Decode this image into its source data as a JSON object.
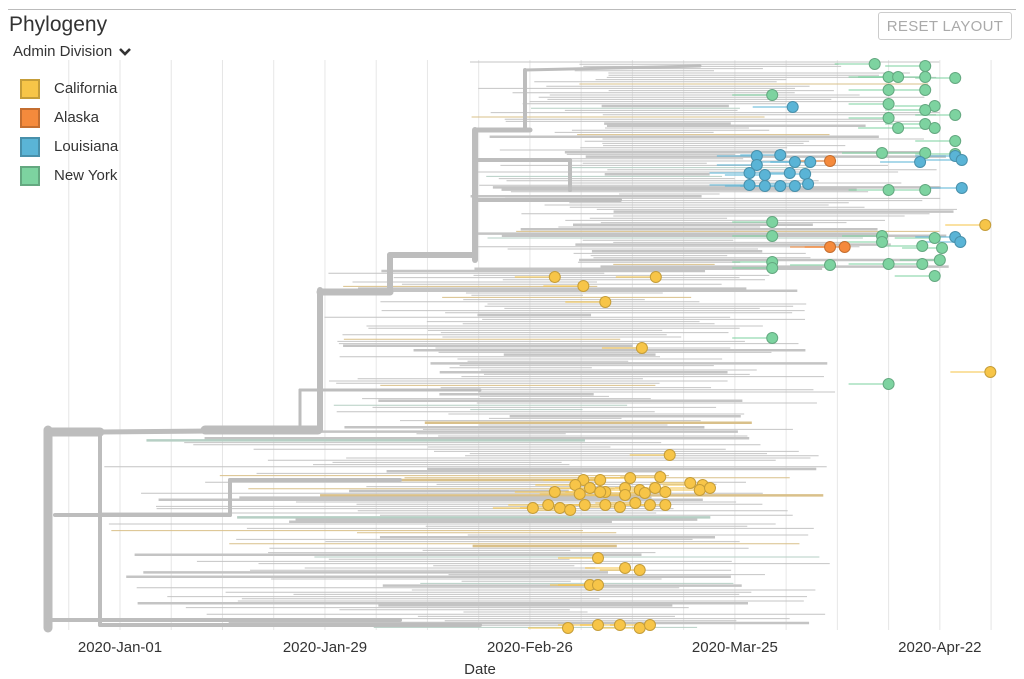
{
  "header": {
    "title": "Phylogeny",
    "reset_label": "RESET LAYOUT"
  },
  "color_by": {
    "label": "Admin Division",
    "icon": "chevron-down-icon"
  },
  "legend": [
    {
      "label": "California",
      "color": "#f7c548"
    },
    {
      "label": "Alaska",
      "color": "#f58a3c"
    },
    {
      "label": "Louisiana",
      "color": "#5ab4d6"
    },
    {
      "label": "New York",
      "color": "#7dd3a0"
    }
  ],
  "chart_data": {
    "type": "scatter",
    "subtype": "phylogenetic-time-tree",
    "xlabel": "Date",
    "x_origin_date": "2020-01-01",
    "x_units": "days since 2020-01-01",
    "xlim": [
      -10,
      121
    ],
    "x_ticks": [
      {
        "label": "2020-Jan-01",
        "day": 0
      },
      {
        "label": "2020-Jan-29",
        "day": 28
      },
      {
        "label": "2020-Feb-26",
        "day": 56
      },
      {
        "label": "2020-Mar-25",
        "day": 84
      },
      {
        "label": "2020-Apr-22",
        "day": 112
      }
    ],
    "grid": true,
    "branch_color": "#bdbdbd",
    "tips": [
      {
        "day": 103.1,
        "division": "New York"
      },
      {
        "day": 110,
        "division": "New York"
      },
      {
        "day": 105,
        "division": "New York"
      },
      {
        "day": 106.3,
        "division": "New York"
      },
      {
        "day": 110,
        "division": "New York"
      },
      {
        "day": 114.1,
        "division": "New York"
      },
      {
        "day": 89.1,
        "division": "New York"
      },
      {
        "day": 105,
        "division": "New York"
      },
      {
        "day": 110,
        "division": "New York"
      },
      {
        "day": 105,
        "division": "New York"
      },
      {
        "day": 111.3,
        "division": "New York"
      },
      {
        "day": 110,
        "division": "New York"
      },
      {
        "day": 114.1,
        "division": "New York"
      },
      {
        "day": 105,
        "division": "New York"
      },
      {
        "day": 106.3,
        "division": "New York"
      },
      {
        "day": 110,
        "division": "New York"
      },
      {
        "day": 111.3,
        "division": "New York"
      },
      {
        "day": 114.1,
        "division": "New York"
      },
      {
        "day": 104.1,
        "division": "New York"
      },
      {
        "day": 110,
        "division": "New York"
      },
      {
        "day": 114.1,
        "division": "New York"
      },
      {
        "day": 105,
        "division": "New York"
      },
      {
        "day": 110,
        "division": "New York"
      },
      {
        "day": 89.1,
        "division": "New York"
      },
      {
        "day": 89.1,
        "division": "New York"
      },
      {
        "day": 104.1,
        "division": "New York"
      },
      {
        "day": 111.3,
        "division": "New York"
      },
      {
        "day": 104.1,
        "division": "New York"
      },
      {
        "day": 109.6,
        "division": "New York"
      },
      {
        "day": 112.3,
        "division": "New York"
      },
      {
        "day": 89.1,
        "division": "New York"
      },
      {
        "day": 97,
        "division": "New York"
      },
      {
        "day": 105,
        "division": "New York"
      },
      {
        "day": 109.6,
        "division": "New York"
      },
      {
        "day": 112,
        "division": "New York"
      },
      {
        "day": 89.1,
        "division": "New York"
      },
      {
        "day": 111.3,
        "division": "New York"
      },
      {
        "day": 89.1,
        "division": "New York"
      },
      {
        "day": 105,
        "division": "New York"
      },
      {
        "day": 91.9,
        "division": "Louisiana"
      },
      {
        "day": 87,
        "division": "Louisiana"
      },
      {
        "day": 90.2,
        "division": "Louisiana"
      },
      {
        "day": 87,
        "division": "Louisiana"
      },
      {
        "day": 92.2,
        "division": "Louisiana"
      },
      {
        "day": 94.3,
        "division": "Louisiana"
      },
      {
        "day": 109.3,
        "division": "Louisiana"
      },
      {
        "day": 114.1,
        "division": "Louisiana"
      },
      {
        "day": 115,
        "division": "Louisiana"
      },
      {
        "day": 86,
        "division": "Louisiana"
      },
      {
        "day": 88.1,
        "division": "Louisiana"
      },
      {
        "day": 91.5,
        "division": "Louisiana"
      },
      {
        "day": 93.6,
        "division": "Louisiana"
      },
      {
        "day": 86,
        "division": "Louisiana"
      },
      {
        "day": 88.1,
        "division": "Louisiana"
      },
      {
        "day": 90.2,
        "division": "Louisiana"
      },
      {
        "day": 92.2,
        "division": "Louisiana"
      },
      {
        "day": 94,
        "division": "Louisiana"
      },
      {
        "day": 115,
        "division": "Louisiana"
      },
      {
        "day": 114.1,
        "division": "Louisiana"
      },
      {
        "day": 114.8,
        "division": "Louisiana"
      },
      {
        "day": 97,
        "division": "Alaska"
      },
      {
        "day": 97,
        "division": "Alaska"
      },
      {
        "day": 99,
        "division": "Alaska"
      },
      {
        "day": 118.2,
        "division": "California"
      },
      {
        "day": 118.9,
        "division": "California"
      },
      {
        "day": 59.4,
        "division": "California"
      },
      {
        "day": 63.3,
        "division": "California"
      },
      {
        "day": 66.3,
        "division": "California"
      },
      {
        "day": 73.2,
        "division": "California"
      },
      {
        "day": 71.3,
        "division": "California"
      },
      {
        "day": 75.1,
        "division": "California"
      },
      {
        "day": 63.3,
        "division": "California"
      },
      {
        "day": 65.6,
        "division": "California"
      },
      {
        "day": 69.7,
        "division": "California"
      },
      {
        "day": 73.8,
        "division": "California"
      },
      {
        "day": 62.2,
        "division": "California"
      },
      {
        "day": 64.2,
        "division": "California"
      },
      {
        "day": 66.3,
        "division": "California"
      },
      {
        "day": 69,
        "division": "California"
      },
      {
        "day": 71,
        "division": "California"
      },
      {
        "day": 73.1,
        "division": "California"
      },
      {
        "day": 77.9,
        "division": "California"
      },
      {
        "day": 79.6,
        "division": "California"
      },
      {
        "day": 59.4,
        "division": "California"
      },
      {
        "day": 62.8,
        "division": "California"
      },
      {
        "day": 65.6,
        "division": "California"
      },
      {
        "day": 69,
        "division": "California"
      },
      {
        "day": 71.7,
        "division": "California"
      },
      {
        "day": 74.5,
        "division": "California"
      },
      {
        "day": 79.2,
        "division": "California"
      },
      {
        "day": 80.6,
        "division": "California"
      },
      {
        "day": 58.5,
        "division": "California"
      },
      {
        "day": 60.1,
        "division": "California"
      },
      {
        "day": 63.5,
        "division": "California"
      },
      {
        "day": 66.3,
        "division": "California"
      },
      {
        "day": 70.4,
        "division": "California"
      },
      {
        "day": 72.4,
        "division": "California"
      },
      {
        "day": 74.5,
        "division": "California"
      },
      {
        "day": 56.4,
        "division": "California"
      },
      {
        "day": 61.5,
        "division": "California"
      },
      {
        "day": 68.3,
        "division": "California"
      },
      {
        "day": 65.3,
        "division": "California"
      },
      {
        "day": 69,
        "division": "California"
      },
      {
        "day": 71,
        "division": "California"
      },
      {
        "day": 64.2,
        "division": "California"
      },
      {
        "day": 65.3,
        "division": "California"
      },
      {
        "day": 61.2,
        "division": "California"
      },
      {
        "day": 65.3,
        "division": "California"
      },
      {
        "day": 68.3,
        "division": "California"
      },
      {
        "day": 71,
        "division": "California"
      },
      {
        "day": 72.4,
        "division": "California"
      }
    ]
  }
}
